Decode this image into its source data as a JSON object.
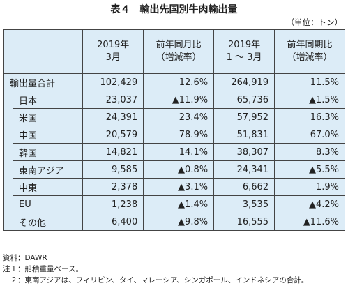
{
  "header": {
    "title": "表４　輸出先国別牛肉輸出量",
    "unit": "（単位：トン）"
  },
  "table": {
    "columns": [
      [
        "2019年",
        "3月"
      ],
      [
        "前年同月比",
        "（増減率）"
      ],
      [
        "2019年",
        "1 ～ 3月"
      ],
      [
        "前年同期比",
        "（増減率）"
      ]
    ],
    "rows": [
      [
        "輸出量合計",
        "102,429",
        "12.6%",
        "264,919",
        "11.5%"
      ],
      [
        "日本",
        "23,037",
        "▲11.9%",
        "65,736",
        "▲1.5%"
      ],
      [
        "米国",
        "24,391",
        "23.4%",
        "57,952",
        "16.3%"
      ],
      [
        "中国",
        "20,579",
        "78.9%",
        "51,831",
        "67.0%"
      ],
      [
        "韓国",
        "14,821",
        "14.1%",
        "38,307",
        "8.3%"
      ],
      [
        "東南アジア",
        "9,585",
        "▲0.8%",
        "24,341",
        "▲5.5%"
      ],
      [
        "中東",
        "2,378",
        "▲3.1%",
        "6,662",
        "1.9%"
      ],
      [
        "EU",
        "1,238",
        "▲1.4%",
        "3,535",
        "▲4.2%"
      ],
      [
        "その他",
        "6,400",
        "▲9.8%",
        "16,555",
        "▲11.6%"
      ]
    ]
  },
  "notes": [
    "資料：DAWR",
    "注１：船積重量ベース。",
    "　２：東南アジアは、フィリピン、タイ、マレーシア、シンガポール、インドネシアの合計。"
  ]
}
